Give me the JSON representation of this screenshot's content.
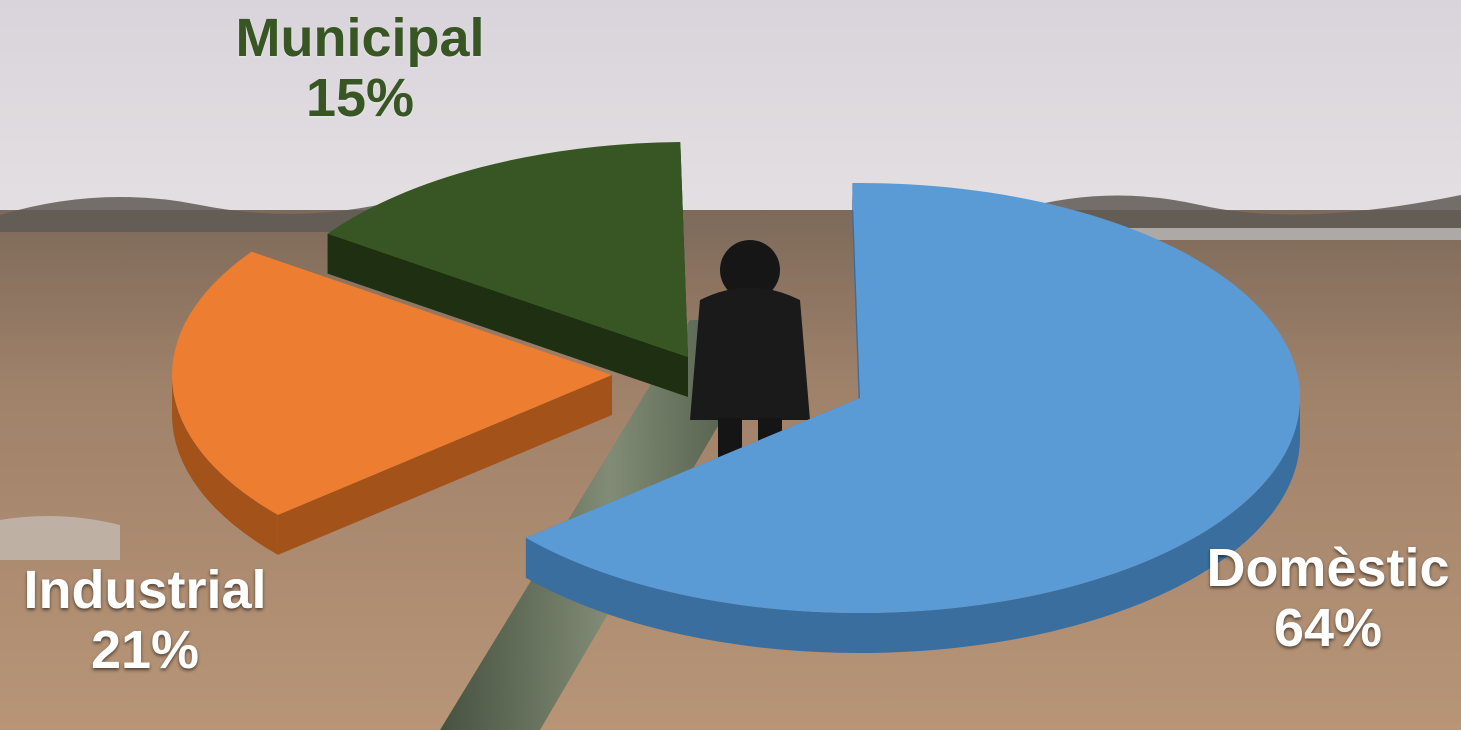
{
  "chart_data": {
    "type": "pie",
    "style": "3d-exploded",
    "slices": [
      {
        "label": "Domèstic",
        "value": 64,
        "value_label": "64%",
        "color": "#5b9bd5",
        "side_color": "#3a6e9f",
        "label_color": "#ffffff"
      },
      {
        "label": "Industrial",
        "value": 21,
        "value_label": "21%",
        "color": "#ed7d31",
        "side_color": "#a3521a",
        "label_color": "#ffffff"
      },
      {
        "label": "Municipal",
        "value": 15,
        "value_label": "15%",
        "color": "#375623",
        "side_color": "#1f3012",
        "label_color": "#375623"
      }
    ]
  },
  "background": {
    "description": "photo",
    "sky_color": "#dcd8dc",
    "field_color": "#9a7a5c"
  }
}
